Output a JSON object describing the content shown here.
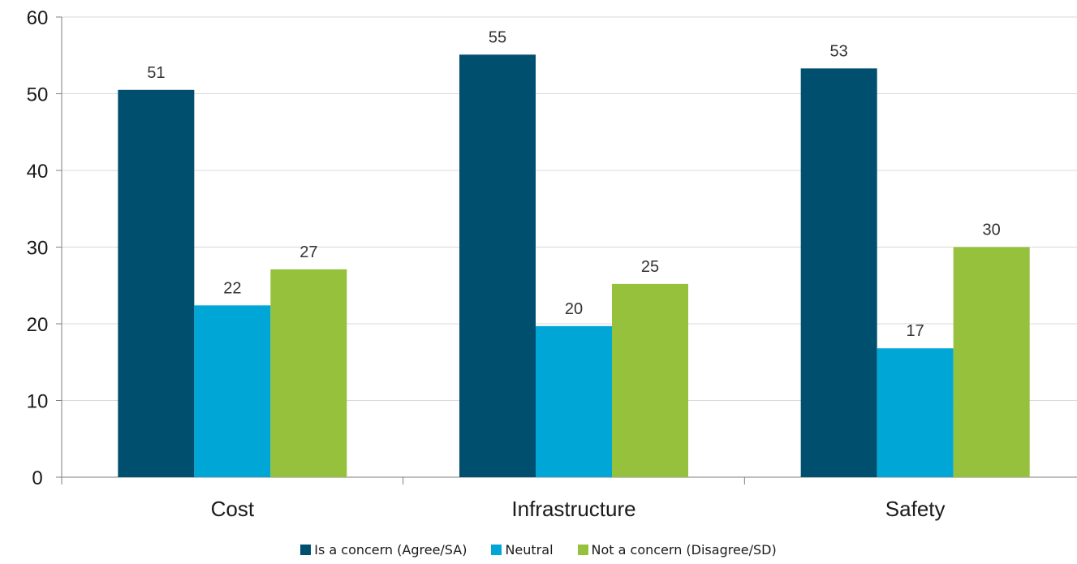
{
  "chart_data": {
    "type": "bar",
    "title": "",
    "xlabel": "",
    "ylabel": "",
    "categories": [
      "Cost",
      "Infrastructure",
      "Safety"
    ],
    "series": [
      {
        "name": "Is a concern (Agree/SA)",
        "color": "#004f6e",
        "values": [
          50.5,
          55.1,
          53.3
        ],
        "labels": [
          "51",
          "55",
          "53"
        ]
      },
      {
        "name": "Neutral",
        "color": "#00a6d6",
        "values": [
          22.4,
          19.7,
          16.8
        ],
        "labels": [
          "22",
          "20",
          "17"
        ]
      },
      {
        "name": "Not a concern (Disagree/SD)",
        "color": "#95c13d",
        "values": [
          27.1,
          25.2,
          30.0
        ],
        "labels": [
          "27",
          "25",
          "30"
        ]
      }
    ],
    "ylim": [
      0,
      60
    ],
    "yticks": [
      0,
      10,
      20,
      30,
      40,
      50,
      60
    ],
    "grid": true,
    "legend_position": "bottom"
  }
}
